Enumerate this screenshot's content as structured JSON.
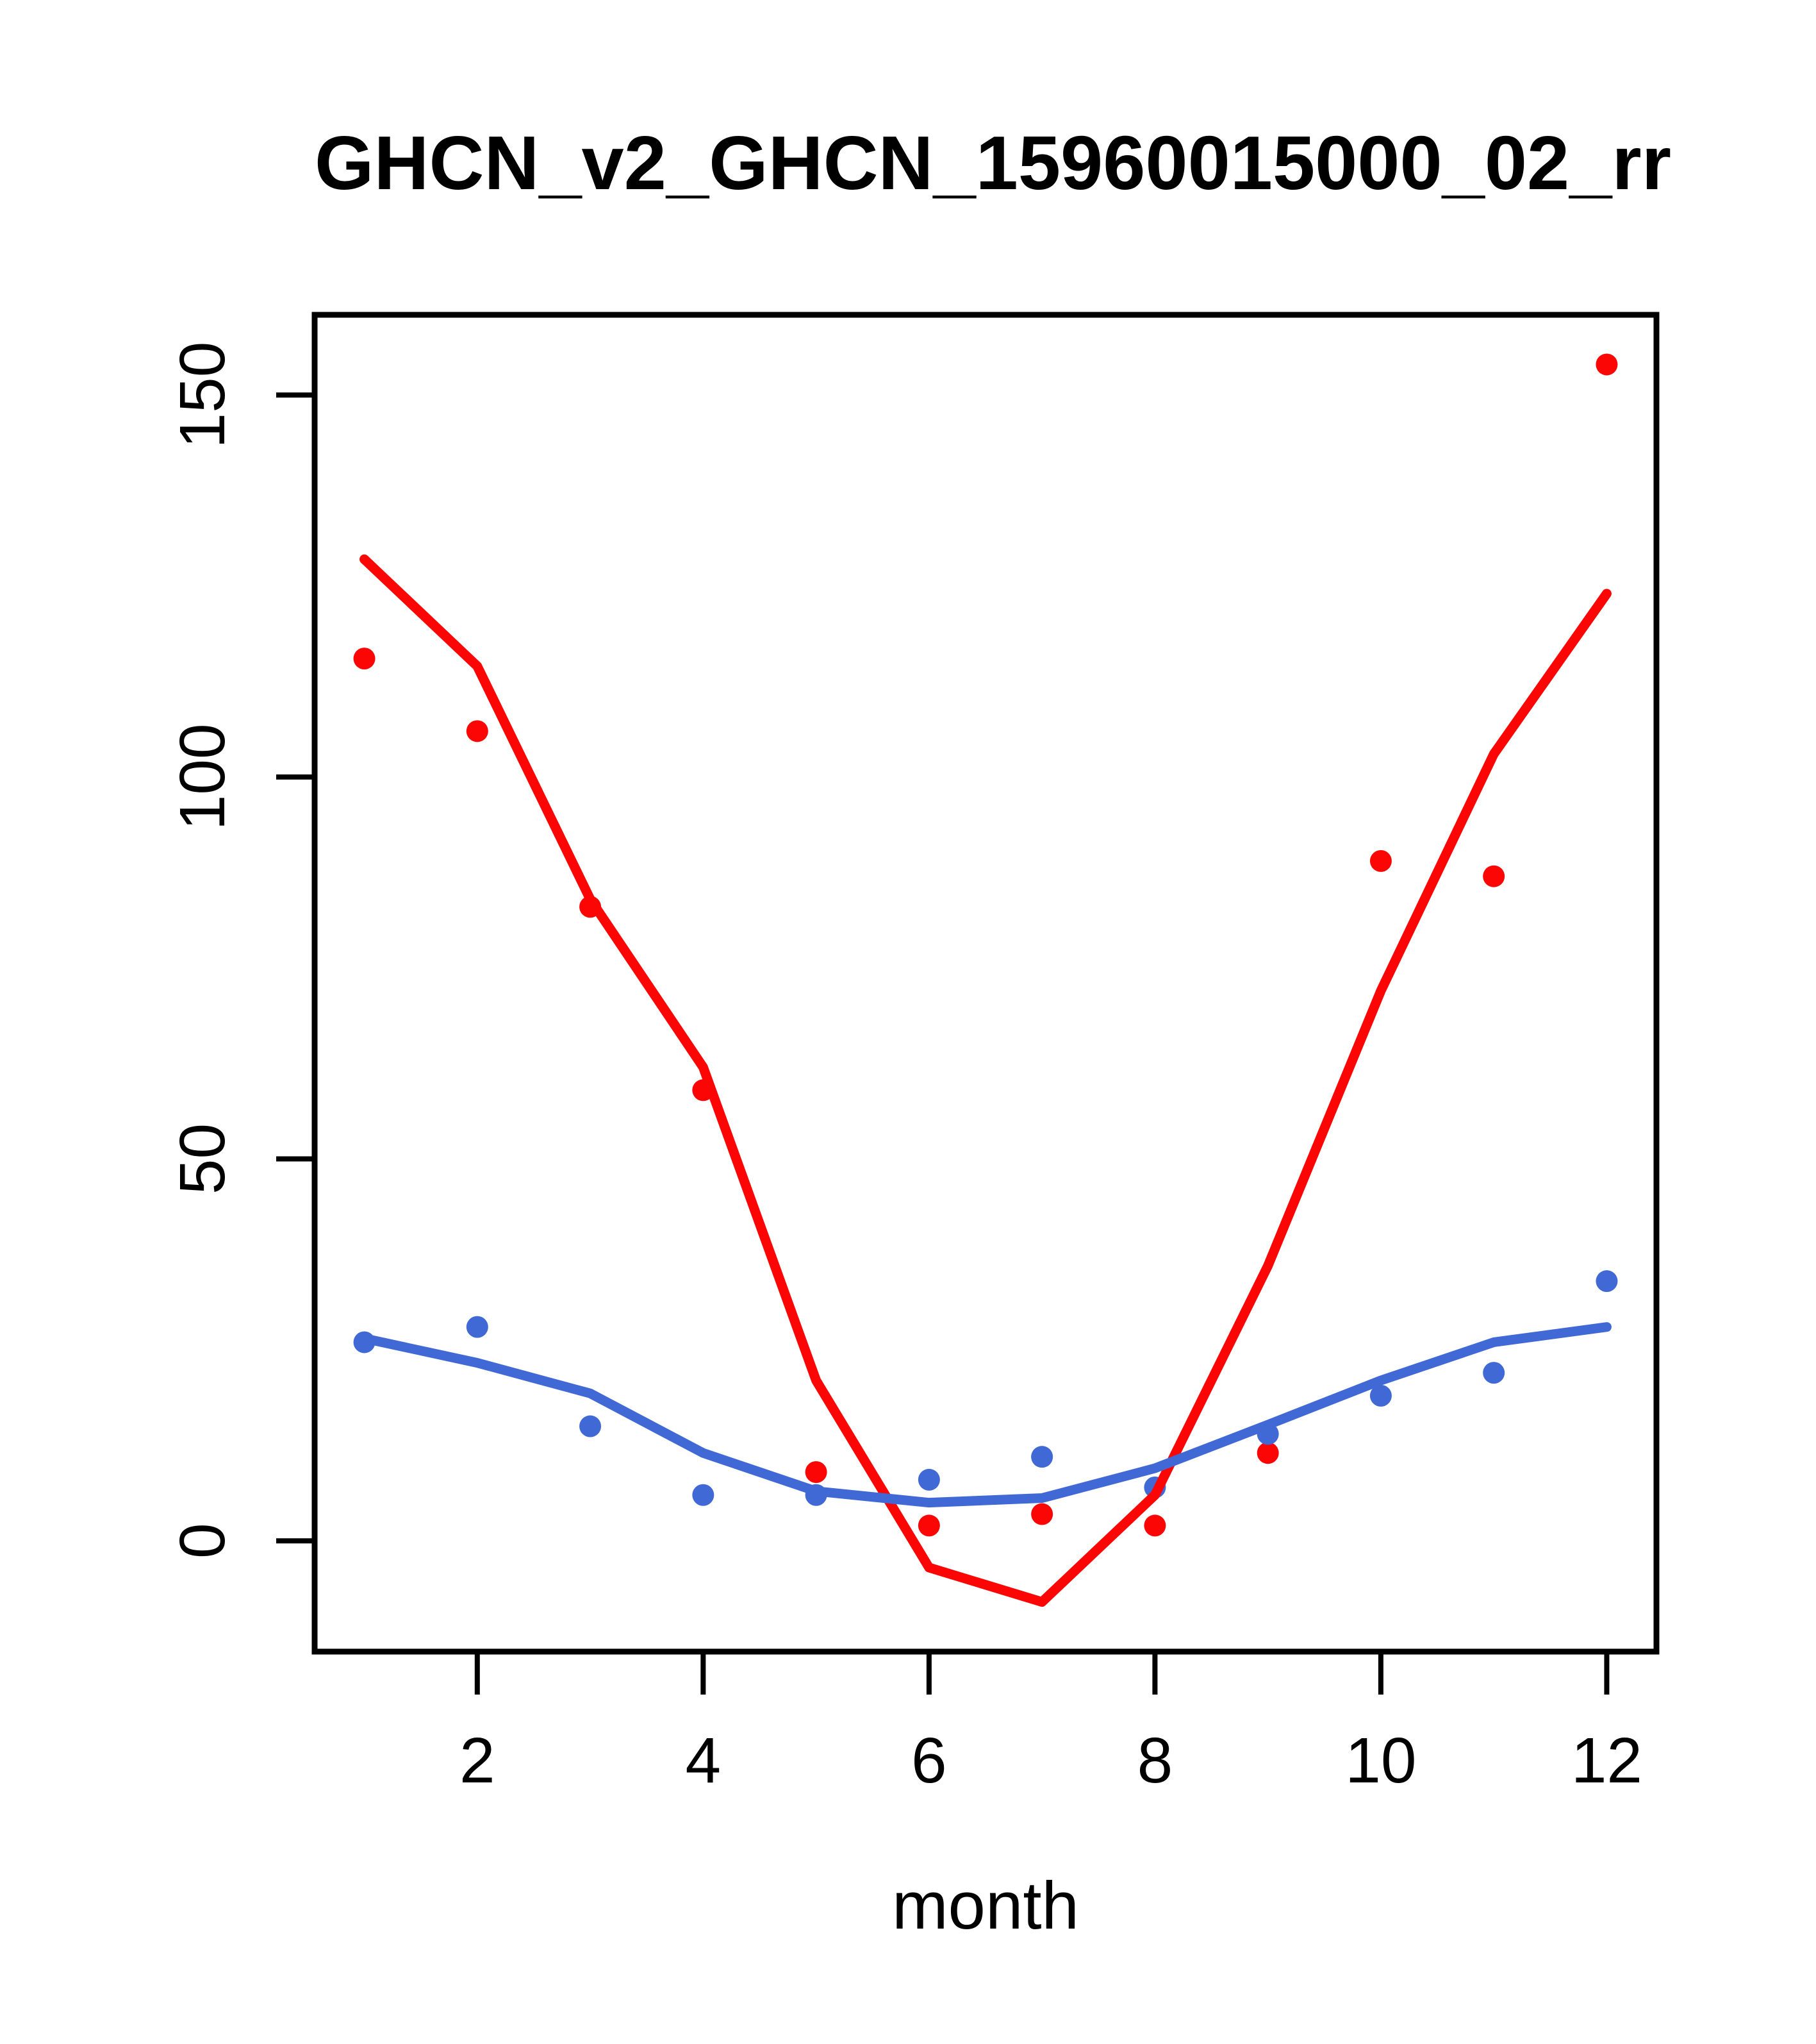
{
  "chart_data": {
    "type": "scatter",
    "title": "GHCN_v2_GHCN_15960015000_02_rr",
    "xlabel": "month",
    "ylabel": "",
    "x": [
      1,
      2,
      3,
      4,
      5,
      6,
      7,
      8,
      9,
      10,
      11,
      12
    ],
    "x_ticks": [
      2,
      4,
      6,
      8,
      10,
      12
    ],
    "y_ticks": [
      0,
      50,
      100,
      150
    ],
    "xlim": [
      0.56,
      12.44
    ],
    "ylim": [
      -14.5,
      160.5
    ],
    "grid": false,
    "legend": "none",
    "colors": {
      "red": "#fb0505",
      "blue": "#4169d6"
    },
    "series": [
      {
        "name": "red-points",
        "kind": "points",
        "color": "#fb0505",
        "values": [
          115.5,
          106,
          83,
          59,
          9,
          2,
          3.5,
          2,
          11.5,
          89,
          87,
          154
        ]
      },
      {
        "name": "blue-points",
        "kind": "points",
        "color": "#4169d6",
        "values": [
          26,
          28,
          15,
          6,
          6,
          8,
          11,
          7,
          14,
          19,
          22,
          34
        ]
      },
      {
        "name": "red-smooth-line",
        "kind": "line",
        "color": "#fb0505",
        "values": [
          128.5,
          114.5,
          84,
          62,
          21,
          -3.5,
          -8,
          6,
          36,
          72,
          103,
          124
        ]
      },
      {
        "name": "blue-smooth-line",
        "kind": "line",
        "color": "#4169d6",
        "values": [
          26.5,
          23.3,
          19.3,
          11.5,
          6.5,
          5,
          5.6,
          9.5,
          15.2,
          21,
          26,
          28
        ]
      }
    ]
  }
}
